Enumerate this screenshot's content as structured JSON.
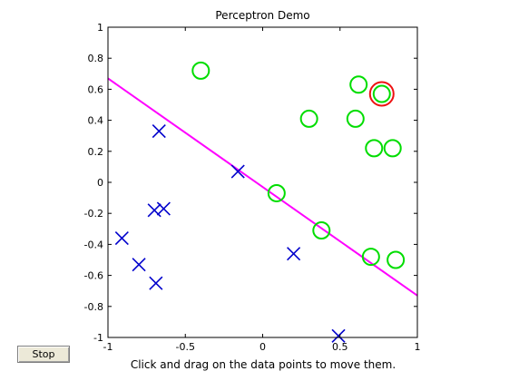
{
  "window": {
    "title": "Perceptron Demo"
  },
  "controls": {
    "stop_label": "Stop"
  },
  "instruction": "Click and drag on the data points to move them.",
  "colors": {
    "positive": "#00dd00",
    "negative": "#0000cc",
    "boundary": "#ff00ff",
    "highlight": "#ee1111",
    "axes": "#000000"
  },
  "chart_data": {
    "type": "scatter",
    "title": "Perceptron Demo",
    "xlabel": "",
    "ylabel": "",
    "xlim": [
      -1,
      1
    ],
    "ylim": [
      -1,
      1
    ],
    "x_ticks": [
      -1,
      -0.5,
      0,
      0.5,
      1
    ],
    "x_tick_labels": [
      "-1",
      "-0.5",
      "0",
      "0.5",
      "1"
    ],
    "y_ticks": [
      1,
      0.8,
      0.6,
      0.4,
      0.2,
      0,
      -0.2,
      -0.4,
      -0.6,
      -0.8,
      -1
    ],
    "y_tick_labels": [
      "1",
      "0.8",
      "0.6",
      "0.4",
      "0.2",
      "0",
      "-0.2",
      "-0.4",
      "-0.6",
      "-0.8",
      "-1"
    ],
    "grid": false,
    "series": [
      {
        "marker": "circle",
        "points": [
          [
            -0.4,
            0.72
          ],
          [
            0.62,
            0.63
          ],
          [
            0.77,
            0.57
          ],
          [
            0.3,
            0.41
          ],
          [
            0.6,
            0.41
          ],
          [
            0.72,
            0.22
          ],
          [
            0.84,
            0.22
          ],
          [
            0.09,
            -0.07
          ],
          [
            0.38,
            -0.31
          ],
          [
            0.7,
            -0.48
          ],
          [
            0.86,
            -0.5
          ]
        ]
      },
      {
        "marker": "x",
        "points": [
          [
            -0.67,
            0.33
          ],
          [
            -0.16,
            0.07
          ],
          [
            -0.7,
            -0.18
          ],
          [
            -0.64,
            -0.17
          ],
          [
            -0.91,
            -0.36
          ],
          [
            -0.8,
            -0.53
          ],
          [
            -0.69,
            -0.65
          ],
          [
            0.2,
            -0.46
          ],
          [
            0.49,
            -0.99
          ]
        ]
      }
    ],
    "highlight_point": [
      0.77,
      0.57
    ],
    "decision_boundary": {
      "x": [
        -1,
        1
      ],
      "y": [
        0.67,
        -0.73
      ]
    }
  }
}
